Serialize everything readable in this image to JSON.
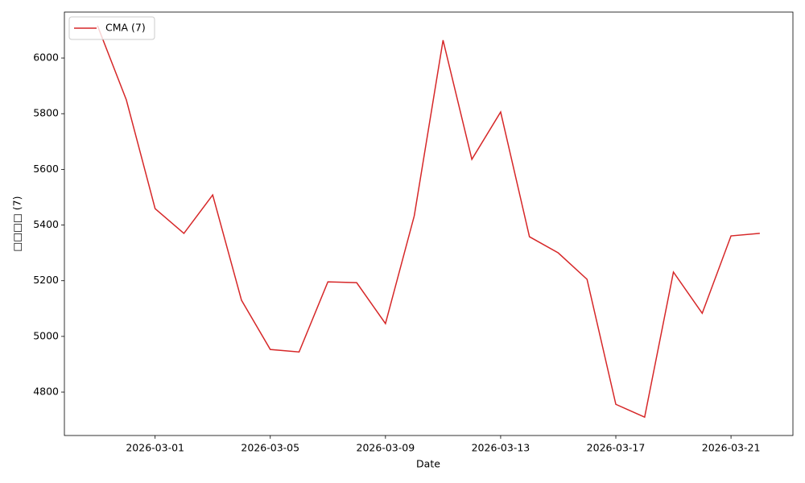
{
  "chart_data": {
    "type": "line",
    "x_label": "Date",
    "y_label": "□□□□ (7)",
    "x": [
      "2026-02-27",
      "2026-02-28",
      "2026-03-01",
      "2026-03-02",
      "2026-03-03",
      "2026-03-04",
      "2026-03-05",
      "2026-03-06",
      "2026-03-07",
      "2026-03-08",
      "2026-03-09",
      "2026-03-10",
      "2026-03-11",
      "2026-03-12",
      "2026-03-13",
      "2026-03-14",
      "2026-03-15",
      "2026-03-16",
      "2026-03-17",
      "2026-03-18",
      "2026-03-19",
      "2026-03-20",
      "2026-03-21",
      "2026-03-22"
    ],
    "series": [
      {
        "name": "CMA (7)",
        "color": "#d62728",
        "values": [
          6116,
          5850,
          5459,
          5370,
          5508,
          5130,
          4953,
          4944,
          5196,
          5193,
          5046,
          5433,
          6064,
          5636,
          5806,
          5358,
          5300,
          5205,
          4756,
          4710,
          5231,
          5083,
          5361,
          5370
        ]
      }
    ],
    "xlim": [
      "2026-02-25T20:24",
      "2026-03-23T03:36"
    ],
    "xticks": [
      "2026-03-01",
      "2026-03-05",
      "2026-03-09",
      "2026-03-13",
      "2026-03-17",
      "2026-03-21"
    ],
    "ylim": [
      4644,
      6165
    ],
    "yticks": [
      4800,
      5000,
      5200,
      5400,
      5600,
      5800,
      6000
    ],
    "legend": "upper left",
    "grid": false
  }
}
